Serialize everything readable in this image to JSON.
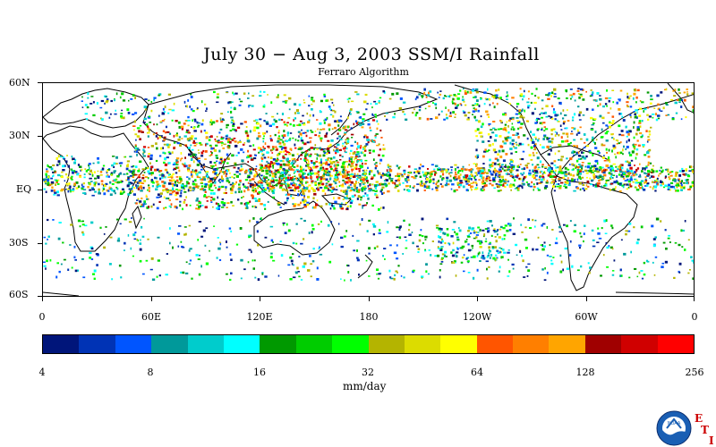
{
  "title": "July 30 − Aug 3, 2003 SSM/I Rainfall",
  "subtitle": "Ferraro Algorithm",
  "map": {
    "lat_labels": [
      "60N",
      "30N",
      "EQ",
      "30S",
      "60S"
    ],
    "lon_labels": [
      "0",
      "60E",
      "120E",
      "180",
      "120W",
      "60W",
      "0"
    ],
    "projection": "cylindrical equidistant",
    "lat_range": [
      -60,
      60
    ],
    "lon_range": [
      0,
      360
    ]
  },
  "colorbar": {
    "colors": [
      "#00157a",
      "#0033b5",
      "#0055ff",
      "#00999a",
      "#00cccc",
      "#00ffff",
      "#009900",
      "#00cc00",
      "#00ff00",
      "#b4b400",
      "#dcdc00",
      "#ffff00",
      "#ff5500",
      "#ff7f00",
      "#ffa500",
      "#a00000",
      "#d00000",
      "#ff0000"
    ],
    "tick_labels": [
      "4",
      "8",
      "16",
      "32",
      "64",
      "128",
      "256"
    ],
    "units": "mm/day",
    "scale": "log2"
  },
  "logo": {
    "icon": "noaa-logo-icon",
    "text": "NOAA",
    "eti_letters": [
      "E",
      "T",
      "I"
    ]
  }
}
